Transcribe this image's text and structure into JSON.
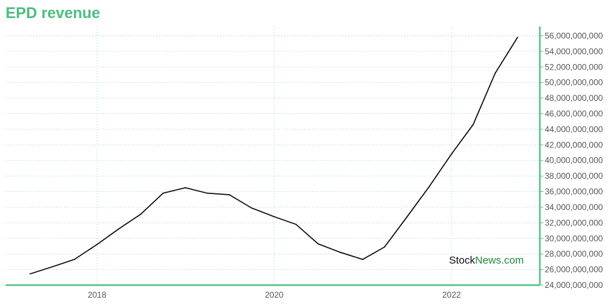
{
  "chart_data": {
    "type": "line",
    "title": "EPD revenue",
    "xlabel": "",
    "ylabel": "",
    "x_ticks": [
      "2018",
      "2020",
      "2022"
    ],
    "y_ticks": [
      "24,000,000,000",
      "26,000,000,000",
      "28,000,000,000",
      "30,000,000,000",
      "32,000,000,000",
      "34,000,000,000",
      "36,000,000,000",
      "38,000,000,000",
      "40,000,000,000",
      "42,000,000,000",
      "44,000,000,000",
      "46,000,000,000",
      "48,000,000,000",
      "50,000,000,000",
      "52,000,000,000",
      "54,000,000,000",
      "56,000,000,000"
    ],
    "ylim": [
      24000000000,
      57200000000
    ],
    "xlim": [
      "2016-12-20",
      "2022-12-31"
    ],
    "grid": true,
    "series": [
      {
        "points": [
          [
            "2017-03-31",
            25450000000
          ],
          [
            "2017-06-30",
            26350000000
          ],
          [
            "2017-09-30",
            27300000000
          ],
          [
            "2017-12-31",
            29200000000
          ],
          [
            "2018-03-31",
            31200000000
          ],
          [
            "2018-06-30",
            33100000000
          ],
          [
            "2018-09-30",
            35800000000
          ],
          [
            "2018-12-31",
            36500000000
          ],
          [
            "2019-03-31",
            35800000000
          ],
          [
            "2019-06-30",
            35600000000
          ],
          [
            "2019-09-30",
            33900000000
          ],
          [
            "2019-12-31",
            32800000000
          ],
          [
            "2020-03-31",
            31800000000
          ],
          [
            "2020-06-30",
            29300000000
          ],
          [
            "2020-09-30",
            28200000000
          ],
          [
            "2020-12-31",
            27300000000
          ],
          [
            "2021-03-31",
            28900000000
          ],
          [
            "2021-06-30",
            32700000000
          ],
          [
            "2021-09-30",
            36600000000
          ],
          [
            "2021-12-31",
            40800000000
          ],
          [
            "2022-03-31",
            44600000000
          ],
          [
            "2022-06-30",
            51200000000
          ],
          [
            "2022-09-30",
            55800000000
          ]
        ]
      }
    ]
  },
  "watermark": {
    "part1": "Stock",
    "part2": "News.com"
  },
  "colors": {
    "title": "#4cbd7f",
    "line": "#000000",
    "axis": "#5cc489",
    "grid": "#b7e0e0",
    "watermark_dark": "#111111",
    "watermark_green": "#1a8a3a"
  }
}
